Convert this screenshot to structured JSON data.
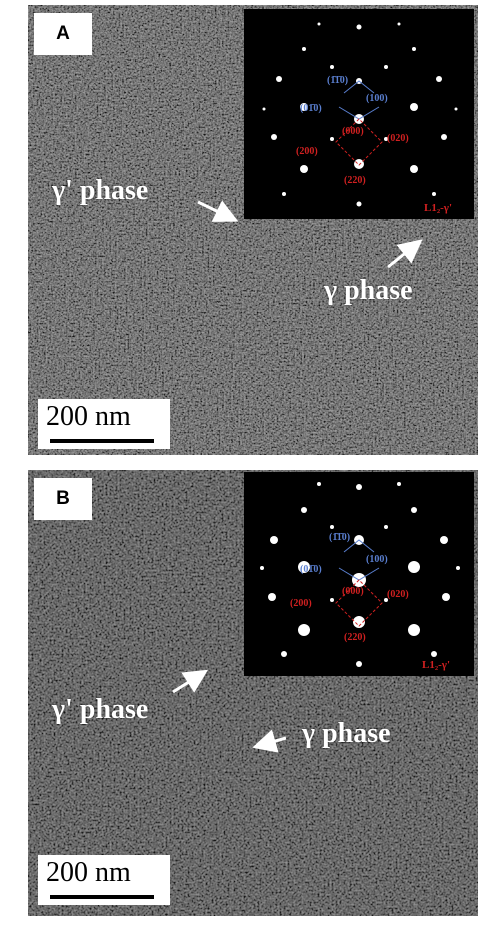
{
  "panels": [
    {
      "letter": "A",
      "phase_prime_label": "γ' phase",
      "phase_label": "γ phase",
      "scale_bar": "200 nm",
      "diffraction": {
        "blue_labels": [
          "(1̄1̄0)",
          "(01̄0)",
          "(100)"
        ],
        "red_labels": [
          "(000)",
          "(200)",
          "(020)",
          "(220)"
        ],
        "structure_label": "L1₂-γ'"
      }
    },
    {
      "letter": "B",
      "phase_prime_label": "γ' phase",
      "phase_label": "γ phase",
      "scale_bar": "200 nm",
      "diffraction": {
        "blue_labels": [
          "(1̄1̄0)",
          "(01̄0)",
          "(100)"
        ],
        "red_labels": [
          "(000)",
          "(200)",
          "(020)",
          "(220)"
        ],
        "structure_label": "L1₂-γ'"
      }
    }
  ],
  "colors": {
    "index_blue": "#5a7fd0",
    "index_red": "#d02020",
    "background_gray": "#2c2c2c"
  }
}
